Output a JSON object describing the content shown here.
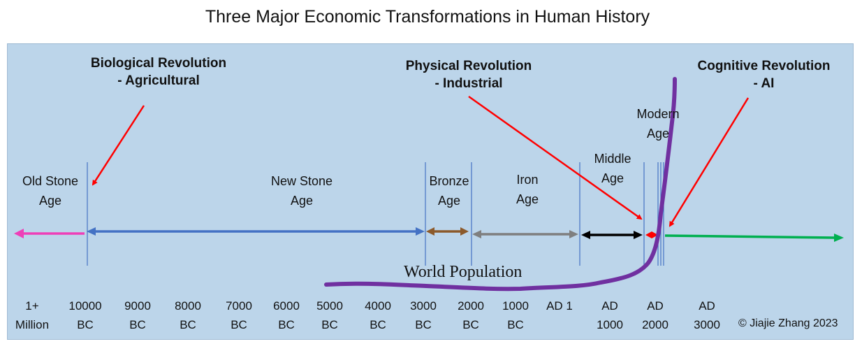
{
  "title": "Three Major Economic Transformations in Human History",
  "revolutions": {
    "biological": "Biological Revolution\n- Agricultural",
    "physical": "Physical Revolution\n- Industrial",
    "cognitive": "Cognitive Revolution\n- AI"
  },
  "ages": {
    "old_stone": "Old Stone\nAge",
    "new_stone": "New Stone\nAge",
    "bronze": "Bronze\nAge",
    "iron": "Iron\nAge",
    "middle": "Middle\nAge",
    "modern": "Modern\nAge"
  },
  "population_label": "World Population",
  "timeline_ticks": [
    "1+\nMillion",
    "10000\nBC",
    "9000\nBC",
    "8000\nBC",
    "7000\nBC",
    "6000\nBC",
    "5000\nBC",
    "4000\nBC",
    "3000\nBC",
    "2000\nBC",
    "1000\nBC",
    "AD 1",
    "AD\n1000",
    "AD\n2000",
    "AD\n3000"
  ],
  "copyright": "© Jiajie Zhang 2023",
  "colors": {
    "old_stone": "#ee3fb8",
    "new_stone": "#4472c4",
    "bronze": "#8c5a2b",
    "iron": "#7f7f7f",
    "middle": "#000000",
    "modern": "#ff0000",
    "future": "#00b050",
    "population_curve": "#7030a0",
    "pointer_arrows": "#ff0000",
    "panel": "#bcd5ea"
  }
}
